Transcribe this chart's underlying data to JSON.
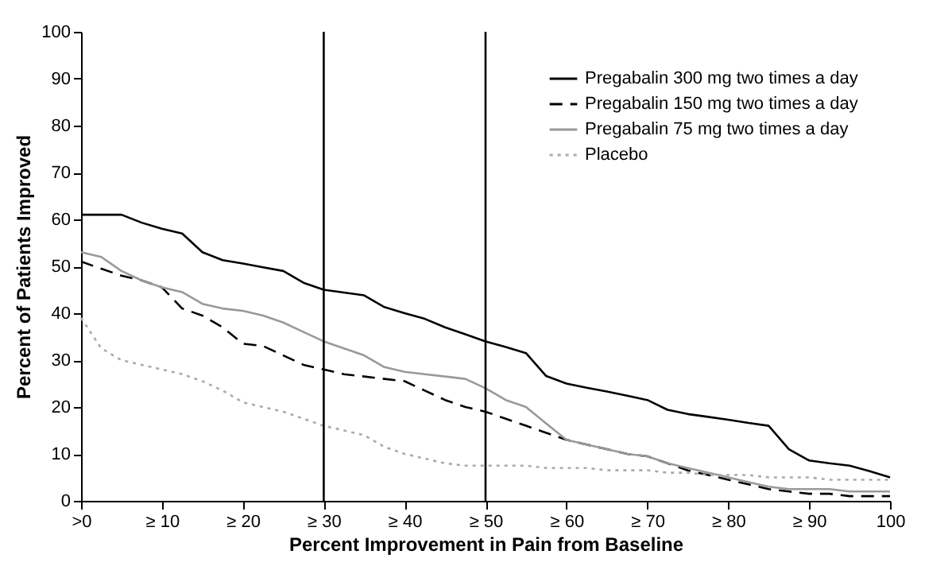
{
  "chart_data": {
    "type": "line",
    "xlabel": "Percent Improvement in Pain from Baseline",
    "ylabel": "Percent of Patients Improved",
    "categories": [
      ">0",
      null,
      null,
      null,
      "≥ 10",
      null,
      null,
      null,
      "≥ 20",
      null,
      null,
      null,
      "≥ 30",
      null,
      null,
      null,
      "≥ 40",
      null,
      null,
      null,
      "≥ 50",
      null,
      null,
      null,
      "≥ 60",
      null,
      null,
      null,
      "≥ 70",
      null,
      null,
      null,
      "≥ 80",
      null,
      null,
      null,
      "≥ 90",
      null,
      null,
      null,
      "100"
    ],
    "ylim": [
      0,
      100
    ],
    "yticks": [
      0,
      10,
      20,
      30,
      40,
      50,
      60,
      70,
      80,
      90,
      100
    ],
    "grid": false,
    "legend": "top right",
    "marker": "none",
    "ref_lines": [
      {
        "axis": "x",
        "value": "≥ 30"
      },
      {
        "axis": "x",
        "value": "≥ 50"
      }
    ],
    "series": [
      {
        "name": "Pregabalin 300 mg two times a day",
        "color": "#000000",
        "line_style": "solid",
        "values": [
          61,
          61,
          61,
          59.3,
          58,
          57,
          53,
          51.3,
          50.6,
          49.8,
          49,
          46.5,
          45,
          44.4,
          43.8,
          41.3,
          40,
          38.8,
          37,
          35.5,
          34,
          32.8,
          31.5,
          26.6,
          25,
          24.1,
          23.3,
          22.4,
          21.5,
          19.4,
          18.5,
          17.9,
          17.3,
          16.6,
          16,
          11,
          8.6,
          8,
          7.5,
          6.3,
          5
        ]
      },
      {
        "name": "Pregabalin 150 mg two times a day",
        "color": "#000000",
        "line_style": "dashed",
        "values": [
          51,
          49.5,
          48,
          47,
          45.5,
          41,
          39.5,
          37,
          33.5,
          33,
          31,
          29,
          28,
          27,
          26.5,
          26,
          25.5,
          23.5,
          21.5,
          20,
          19,
          17.5,
          16,
          14.5,
          13,
          12,
          11,
          10,
          9.5,
          8,
          6.5,
          5.5,
          4.5,
          3.5,
          2.5,
          2,
          1.5,
          1.5,
          1,
          1,
          1
        ]
      },
      {
        "name": "Pregabalin 75 mg two times a day",
        "color": "#999999",
        "line_style": "solid",
        "values": [
          53,
          52,
          49,
          47,
          45.5,
          44.5,
          42,
          41,
          40.5,
          39.5,
          38,
          36,
          34,
          32.5,
          31,
          28.5,
          27.5,
          27,
          26.5,
          26,
          24,
          21.5,
          20,
          16.5,
          13,
          12,
          11,
          10,
          9.5,
          8,
          7,
          6,
          5,
          4,
          3,
          2.5,
          2.5,
          2.5,
          2,
          2,
          2
        ]
      },
      {
        "name": "Placebo",
        "color": "#aaaaaa",
        "line_style": "dotted",
        "values": [
          39,
          32.5,
          30,
          29,
          28,
          27,
          25.5,
          23.5,
          21,
          20,
          19,
          17.5,
          16,
          15,
          14,
          11.5,
          10,
          9,
          8,
          7.5,
          7.5,
          7.5,
          7.5,
          7,
          7,
          7,
          6.5,
          6.5,
          6.5,
          6,
          6,
          5.5,
          5.5,
          5.5,
          5,
          5,
          5,
          4.5,
          4.5,
          4.5,
          4.5
        ]
      }
    ]
  }
}
